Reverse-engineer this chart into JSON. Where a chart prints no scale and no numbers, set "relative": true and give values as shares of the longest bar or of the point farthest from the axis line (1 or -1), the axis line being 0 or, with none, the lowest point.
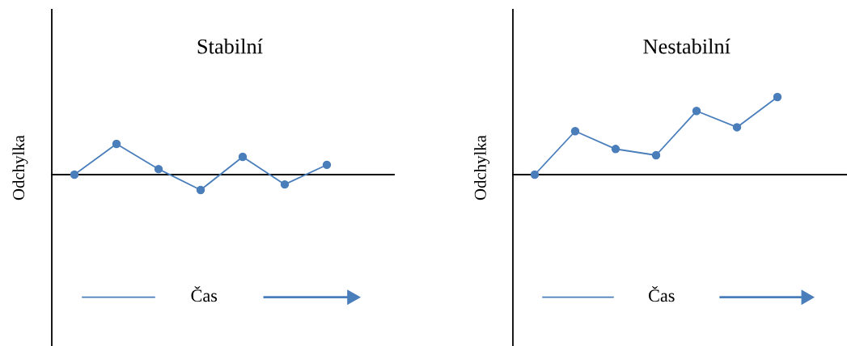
{
  "chart_data": [
    {
      "type": "line",
      "title": "Stabilní",
      "xlabel": "Čas",
      "ylabel": "Odchylka",
      "relative": true,
      "marker": "circle",
      "line_style": "solid",
      "categories": [
        null,
        null,
        null,
        null,
        null,
        null,
        null
      ],
      "series": [
        {
          "color": "#4a7ebb",
          "values": [
            0,
            1,
            0.18,
            -0.5,
            0.58,
            -0.32,
            0.32
          ]
        }
      ]
    },
    {
      "type": "line",
      "title": "Nestabilní",
      "xlabel": "Čas",
      "ylabel": "Odchylka",
      "relative": true,
      "marker": "circle",
      "line_style": "solid",
      "categories": [
        null,
        null,
        null,
        null,
        null,
        null,
        null
      ],
      "series": [
        {
          "color": "#4a7ebb",
          "values": [
            0,
            0.56,
            0.33,
            0.25,
            0.82,
            0.61,
            1
          ]
        }
      ]
    }
  ]
}
